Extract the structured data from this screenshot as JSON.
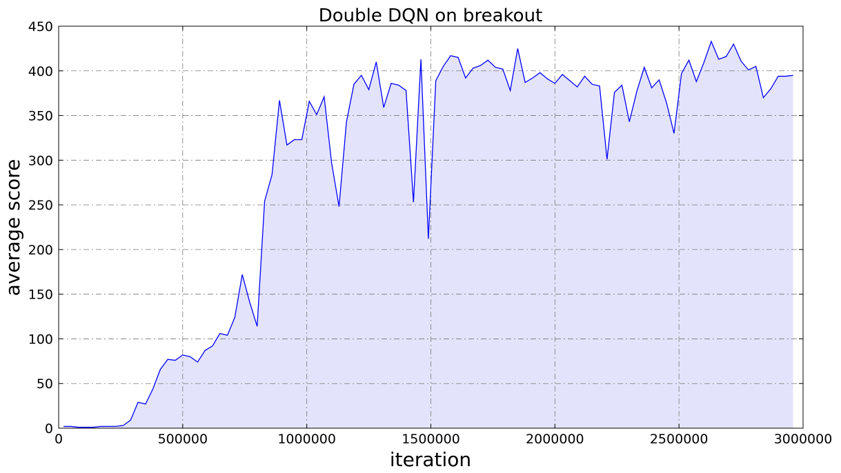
{
  "chart_data": {
    "type": "line",
    "title": "Double DQN on breakout",
    "x_label": "iteration",
    "y_label": "average score",
    "color": "#0000ff",
    "fill_color": "#e3e3fb",
    "grid": true,
    "x": [
      20000,
      50000,
      80000,
      110000,
      140000,
      170000,
      200000,
      230000,
      260000,
      290000,
      320000,
      350000,
      380000,
      410000,
      440000,
      470000,
      500000,
      530000,
      560000,
      590000,
      620000,
      650000,
      680000,
      710000,
      740000,
      770000,
      800000,
      830000,
      860000,
      890000,
      920000,
      950000,
      980000,
      1010000,
      1040000,
      1070000,
      1100000,
      1130000,
      1160000,
      1190000,
      1220000,
      1250000,
      1280000,
      1310000,
      1340000,
      1370000,
      1400000,
      1430000,
      1460000,
      1490000,
      1520000,
      1550000,
      1580000,
      1610000,
      1640000,
      1670000,
      1700000,
      1730000,
      1760000,
      1790000,
      1820000,
      1850000,
      1880000,
      1910000,
      1940000,
      1970000,
      2000000,
      2030000,
      2060000,
      2090000,
      2120000,
      2150000,
      2180000,
      2210000,
      2240000,
      2270000,
      2300000,
      2330000,
      2360000,
      2390000,
      2420000,
      2450000,
      2480000,
      2510000,
      2540000,
      2570000,
      2600000,
      2630000,
      2660000,
      2690000,
      2720000,
      2750000,
      2780000,
      2810000,
      2840000,
      2870000,
      2900000,
      2930000,
      2960000
    ],
    "values": [
      2,
      2,
      1,
      1,
      1,
      2,
      2,
      2,
      3,
      9,
      29,
      27,
      44,
      66,
      77,
      76,
      82,
      80,
      74,
      87,
      92,
      106,
      104,
      124,
      172,
      141,
      114,
      254,
      284,
      367,
      317,
      323,
      323,
      366,
      351,
      371,
      297,
      248,
      343,
      385,
      395,
      379,
      410,
      359,
      386,
      384,
      378,
      253,
      413,
      212,
      389,
      405,
      417,
      415,
      392,
      403,
      406,
      412,
      404,
      402,
      378,
      425,
      387,
      392,
      398,
      391,
      386,
      396,
      389,
      382,
      394,
      385,
      383,
      301,
      376,
      384,
      343,
      377,
      404,
      381,
      390,
      364,
      330,
      397,
      412,
      388,
      409,
      433,
      413,
      416,
      430,
      411,
      401,
      405,
      370,
      380,
      394,
      394,
      395
    ],
    "xlim": [
      0,
      3000000
    ],
    "ylim": [
      0,
      450
    ],
    "xticks": [
      0,
      500000,
      1000000,
      1500000,
      2000000,
      2500000,
      3000000
    ],
    "yticks": [
      0,
      50,
      100,
      150,
      200,
      250,
      300,
      350,
      400,
      450
    ]
  }
}
